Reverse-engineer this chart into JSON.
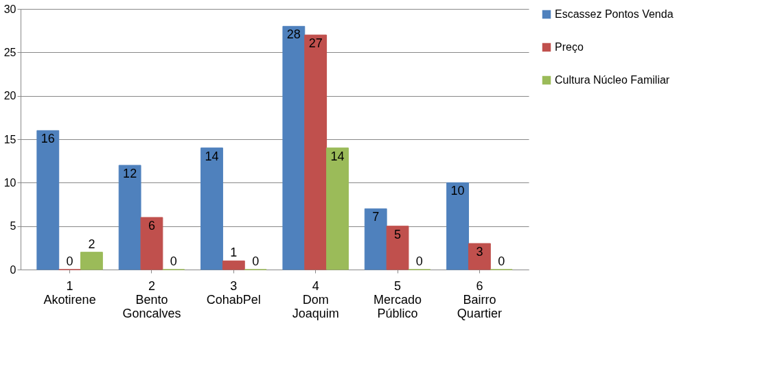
{
  "chart_data": {
    "type": "bar",
    "categories": [
      "1\n\nAkotirene",
      "2\n\nBento\nGoncalves",
      "3\n\nCohabPel",
      "4\n\nDom\nJoaquim",
      "5\n\nMercado\nPúblico",
      "6\n\nBairro\nQuartier"
    ],
    "series": [
      {
        "name": "Escassez Pontos Venda",
        "color": "#4f81bd",
        "values": [
          16,
          12,
          14,
          28,
          7,
          10
        ]
      },
      {
        "name": "Preço",
        "color": "#c0504d",
        "values": [
          0,
          6,
          1,
          27,
          5,
          3
        ]
      },
      {
        "name": "Cultura Núcleo Familiar",
        "color": "#9bbb59",
        "values": [
          2,
          0,
          0,
          14,
          0,
          0
        ]
      }
    ],
    "ylim": [
      0,
      30
    ],
    "yticks": [
      0,
      5,
      10,
      15,
      20,
      25,
      30
    ],
    "grid": "y",
    "legend": "right",
    "data_labels": true
  }
}
